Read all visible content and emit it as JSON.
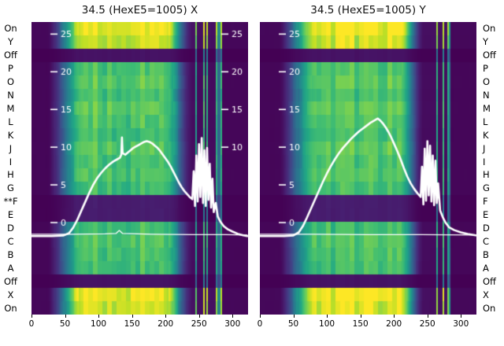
{
  "figure": {
    "background": "#ffffff",
    "accent_curve_color": "#ffffff",
    "left_marker": {
      "row_index": 13,
      "text": "**"
    }
  },
  "rows": [
    {
      "label": "On",
      "intensity": 1.0
    },
    {
      "label": "Y",
      "intensity": 0.93
    },
    {
      "label": "Off",
      "intensity": 0.05
    },
    {
      "label": "P",
      "intensity": 0.72
    },
    {
      "label": "O",
      "intensity": 0.75
    },
    {
      "label": "N",
      "intensity": 0.71
    },
    {
      "label": "M",
      "intensity": 0.76
    },
    {
      "label": "L",
      "intensity": 0.73
    },
    {
      "label": "K",
      "intensity": 0.7
    },
    {
      "label": "J",
      "intensity": 0.75
    },
    {
      "label": "I",
      "intensity": 0.72
    },
    {
      "label": "H",
      "intensity": 0.74
    },
    {
      "label": "G",
      "intensity": 0.7
    },
    {
      "label": "F",
      "intensity": 0.08,
      "marker": "**"
    },
    {
      "label": "E",
      "intensity": 0.08
    },
    {
      "label": "D",
      "intensity": 0.7
    },
    {
      "label": "C",
      "intensity": 0.74
    },
    {
      "label": "B",
      "intensity": 0.72
    },
    {
      "label": "A",
      "intensity": 0.7
    },
    {
      "label": "Off",
      "intensity": 0.05
    },
    {
      "label": "X",
      "intensity": 1.0
    },
    {
      "label": "On",
      "intensity": 0.95
    }
  ],
  "chart_data": [
    {
      "type": "heatmap",
      "title": "34.5 (HexE5=1005) X",
      "colormap": "viridis",
      "x_ticks": [
        0,
        50,
        100,
        150,
        200,
        250,
        300
      ],
      "y_ticks": [
        0,
        5,
        10,
        15,
        20,
        25
      ],
      "right_tick_labels": [
        25,
        20,
        15,
        10
      ],
      "x_range": [
        0,
        322
      ],
      "y_range": [
        -12.2,
        26.6
      ],
      "heat_profile": {
        "rise": [
          22,
          78
        ],
        "flat_end": 198,
        "fall_end": 238,
        "noise": [
          241,
          284
        ]
      },
      "series": [
        {
          "name": "beam-profile-x",
          "color": "#ffffff",
          "width": 2.6,
          "points": [
            [
              0,
              -1.8
            ],
            [
              30,
              -1.8
            ],
            [
              48,
              -1.7
            ],
            [
              56,
              -1.4
            ],
            [
              62,
              -0.7
            ],
            [
              68,
              0.3
            ],
            [
              74,
              1.5
            ],
            [
              80,
              2.7
            ],
            [
              86,
              3.9
            ],
            [
              92,
              5.0
            ],
            [
              98,
              5.9
            ],
            [
              104,
              6.6
            ],
            [
              110,
              7.2
            ],
            [
              116,
              7.7
            ],
            [
              122,
              8.1
            ],
            [
              128,
              8.4
            ],
            [
              132,
              8.6
            ],
            [
              134,
              9.0
            ],
            [
              135,
              11.3
            ],
            [
              136,
              9.2
            ],
            [
              140,
              9.0
            ],
            [
              144,
              9.3
            ],
            [
              148,
              9.6
            ],
            [
              152,
              9.9
            ],
            [
              156,
              10.1
            ],
            [
              160,
              10.3
            ],
            [
              164,
              10.5
            ],
            [
              168,
              10.7
            ],
            [
              172,
              10.8
            ],
            [
              176,
              10.7
            ],
            [
              180,
              10.5
            ],
            [
              184,
              10.2
            ],
            [
              188,
              9.9
            ],
            [
              192,
              9.5
            ],
            [
              196,
              9.0
            ],
            [
              200,
              8.5
            ],
            [
              204,
              8.0
            ],
            [
              208,
              7.4
            ],
            [
              212,
              6.7
            ],
            [
              216,
              6.0
            ],
            [
              220,
              5.3
            ],
            [
              224,
              4.7
            ],
            [
              228,
              4.2
            ],
            [
              232,
              3.8
            ],
            [
              236,
              3.4
            ],
            [
              240,
              3.1
            ],
            [
              242,
              6.8
            ],
            [
              244,
              2.2
            ],
            [
              246,
              8.9
            ],
            [
              248,
              2.8
            ],
            [
              250,
              10.4
            ],
            [
              252,
              3.4
            ],
            [
              254,
              11.2
            ],
            [
              256,
              2.6
            ],
            [
              258,
              9.6
            ],
            [
              260,
              2.2
            ],
            [
              262,
              9.9
            ],
            [
              264,
              3.0
            ],
            [
              266,
              7.8
            ],
            [
              268,
              2.0
            ],
            [
              270,
              5.8
            ],
            [
              272,
              1.4
            ],
            [
              275,
              2.6
            ],
            [
              278,
              0.8
            ],
            [
              282,
              0.1
            ],
            [
              287,
              -0.5
            ],
            [
              293,
              -0.9
            ],
            [
              300,
              -1.2
            ],
            [
              308,
              -1.5
            ],
            [
              316,
              -1.7
            ],
            [
              322,
              -1.8
            ]
          ]
        },
        {
          "name": "baseline-x",
          "color": "#ffffff",
          "width": 1.3,
          "points": [
            [
              0,
              -1.55
            ],
            [
              60,
              -1.55
            ],
            [
              110,
              -1.5
            ],
            [
              126,
              -1.45
            ],
            [
              131,
              -1.05
            ],
            [
              136,
              -1.45
            ],
            [
              180,
              -1.55
            ],
            [
              240,
              -1.6
            ],
            [
              290,
              -1.6
            ],
            [
              322,
              -1.65
            ]
          ]
        }
      ]
    },
    {
      "type": "heatmap",
      "title": "34.5 (HexE5=1005) Y",
      "colormap": "viridis",
      "x_ticks": [
        0,
        50,
        100,
        150,
        200,
        250,
        300
      ],
      "y_ticks": [
        0,
        5,
        10,
        15,
        20,
        25
      ],
      "right_tick_labels": [],
      "x_range": [
        0,
        322
      ],
      "y_range": [
        -12.2,
        26.6
      ],
      "heat_profile": {
        "rise": [
          26,
          84
        ],
        "flat_end": 208,
        "fall_end": 242,
        "noise": [
          243,
          284
        ]
      },
      "series": [
        {
          "name": "beam-profile-y",
          "color": "#ffffff",
          "width": 2.6,
          "points": [
            [
              0,
              -1.8
            ],
            [
              36,
              -1.8
            ],
            [
              50,
              -1.7
            ],
            [
              58,
              -1.3
            ],
            [
              64,
              -0.5
            ],
            [
              70,
              0.6
            ],
            [
              76,
              1.8
            ],
            [
              82,
              3.0
            ],
            [
              88,
              4.2
            ],
            [
              94,
              5.4
            ],
            [
              100,
              6.5
            ],
            [
              106,
              7.5
            ],
            [
              112,
              8.4
            ],
            [
              118,
              9.2
            ],
            [
              124,
              9.9
            ],
            [
              130,
              10.5
            ],
            [
              136,
              11.1
            ],
            [
              142,
              11.6
            ],
            [
              148,
              12.1
            ],
            [
              154,
              12.5
            ],
            [
              160,
              12.9
            ],
            [
              166,
              13.3
            ],
            [
              172,
              13.6
            ],
            [
              176,
              13.8
            ],
            [
              180,
              13.5
            ],
            [
              184,
              13.1
            ],
            [
              188,
              12.6
            ],
            [
              192,
              12.0
            ],
            [
              196,
              11.3
            ],
            [
              200,
              10.5
            ],
            [
              205,
              9.5
            ],
            [
              210,
              8.4
            ],
            [
              215,
              7.2
            ],
            [
              220,
              6.1
            ],
            [
              225,
              5.2
            ],
            [
              230,
              4.5
            ],
            [
              235,
              3.9
            ],
            [
              240,
              3.4
            ],
            [
              242,
              7.4
            ],
            [
              244,
              2.4
            ],
            [
              246,
              9.8
            ],
            [
              248,
              2.9
            ],
            [
              250,
              10.8
            ],
            [
              252,
              3.6
            ],
            [
              254,
              10.2
            ],
            [
              256,
              2.8
            ],
            [
              258,
              8.9
            ],
            [
              260,
              2.3
            ],
            [
              262,
              8.2
            ],
            [
              264,
              2.6
            ],
            [
              266,
              5.2
            ],
            [
              269,
              1.6
            ],
            [
              273,
              0.7
            ],
            [
              277,
              0.0
            ],
            [
              282,
              -0.6
            ],
            [
              290,
              -1.0
            ],
            [
              300,
              -1.3
            ],
            [
              310,
              -1.5
            ],
            [
              322,
              -1.7
            ]
          ]
        },
        {
          "name": "baseline-y",
          "color": "#ffffff",
          "width": 1.3,
          "points": [
            [
              0,
              -1.55
            ],
            [
              80,
              -1.55
            ],
            [
              160,
              -1.6
            ],
            [
              240,
              -1.6
            ],
            [
              322,
              -1.65
            ]
          ]
        }
      ]
    }
  ]
}
